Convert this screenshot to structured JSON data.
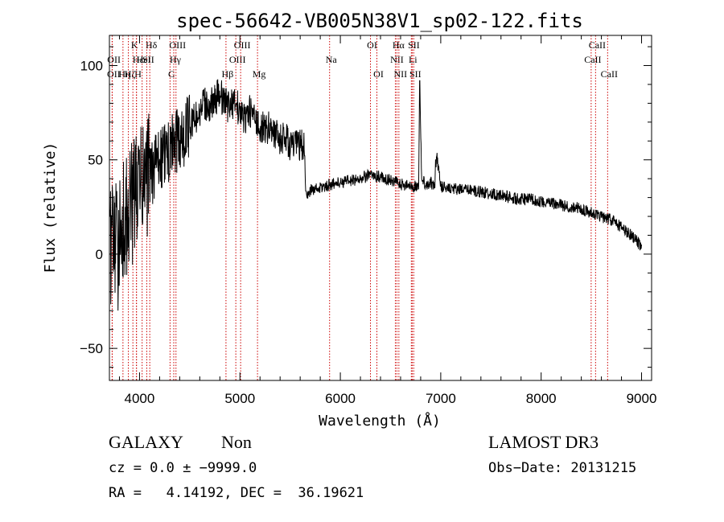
{
  "chart_data": {
    "type": "line",
    "title": "spec-56642-VB005N38V1_sp02-122.fits",
    "xlabel": "Wavelength (Å)",
    "ylabel": "Flux (relative)",
    "xlim": [
      3700,
      9100
    ],
    "ylim": [
      -67,
      116
    ],
    "xticks": [
      4000,
      5000,
      6000,
      7000,
      8000,
      9000
    ],
    "yticks": [
      -50,
      0,
      50,
      100
    ],
    "tick_labels_x": [
      "4000",
      "5000",
      "6000",
      "7000",
      "8000",
      "9000"
    ],
    "tick_labels_y": [
      "−50",
      "0",
      "50",
      "100"
    ],
    "grid": false,
    "line_color": "#000000",
    "marker_color": "#cc0000",
    "series": [
      {
        "values_x": [
          3700,
          3740,
          3780,
          3820,
          3860,
          3900,
          3950,
          4000,
          4050,
          4100,
          4150,
          4200,
          4250,
          4300,
          4350,
          4400,
          4450,
          4500,
          4550,
          4600,
          4650,
          4700,
          4750,
          4800,
          4850,
          4900,
          4950,
          5000,
          5050,
          5100,
          5150,
          5200,
          5250,
          5300,
          5350,
          5400,
          5450,
          5500,
          5550,
          5600,
          5640,
          5660,
          5700,
          5800,
          5900,
          6000,
          6100,
          6200,
          6300,
          6400,
          6500,
          6562,
          6600,
          6700,
          6750,
          6780,
          6790,
          6810,
          6850,
          6900,
          6940,
          6960,
          7000,
          7100,
          7200,
          7300,
          7400,
          7500,
          7600,
          7700,
          7800,
          7900,
          8000,
          8100,
          8200,
          8300,
          8400,
          8500,
          8600,
          8700,
          8750,
          8800,
          8850,
          8900,
          8950,
          9000
        ],
        "values_y": [
          5,
          10,
          0,
          20,
          15,
          25,
          30,
          35,
          40,
          42,
          45,
          50,
          52,
          55,
          58,
          60,
          65,
          68,
          72,
          75,
          80,
          78,
          82,
          85,
          80,
          78,
          82,
          75,
          72,
          76,
          70,
          68,
          66,
          68,
          64,
          60,
          62,
          58,
          57,
          58,
          56,
          30,
          34,
          35,
          37,
          38,
          39,
          40,
          42,
          41,
          39,
          38,
          37,
          36,
          36,
          37,
          92,
          40,
          37,
          38,
          36,
          52,
          36,
          35,
          34,
          34,
          33,
          32,
          31,
          30,
          29,
          29,
          28,
          27,
          26,
          25,
          24,
          22,
          20,
          18,
          16,
          14,
          12,
          10,
          8,
          2
        ]
      }
    ],
    "line_markers": [
      {
        "x": 3727,
        "label": "OII",
        "row": 2
      },
      {
        "x": 3729,
        "label": "OII",
        "row": 1
      },
      {
        "x": 3835,
        "label": "Hη",
        "row": 2
      },
      {
        "x": 3889,
        "label": "Hζ",
        "row": 2
      },
      {
        "x": 3934,
        "label": "K",
        "row": 0
      },
      {
        "x": 3969,
        "label": "H",
        "row": 2
      },
      {
        "x": 3970,
        "label": "Hε",
        "row": 1
      },
      {
        "x": 4026,
        "label": "HeI",
        "row": 1
      },
      {
        "x": 4102,
        "label": "Hδ",
        "row": 0
      },
      {
        "x": 4072,
        "label": "SII",
        "row": 1
      },
      {
        "x": 4304,
        "label": "G",
        "row": 2
      },
      {
        "x": 4341,
        "label": "Hγ",
        "row": 1
      },
      {
        "x": 4363,
        "label": "OIII",
        "row": 0
      },
      {
        "x": 4861,
        "label": "Hβ",
        "row": 2
      },
      {
        "x": 4959,
        "label": "OIII",
        "row": 1
      },
      {
        "x": 5007,
        "label": "OIII",
        "row": 0
      },
      {
        "x": 5175,
        "label": "Mg",
        "row": 2
      },
      {
        "x": 5893,
        "label": "Na",
        "row": 1
      },
      {
        "x": 6300,
        "label": "OI",
        "row": 0
      },
      {
        "x": 6364,
        "label": "OI",
        "row": 2
      },
      {
        "x": 6548,
        "label": "NII",
        "row": 1
      },
      {
        "x": 6563,
        "label": "Hα",
        "row": 0
      },
      {
        "x": 6583,
        "label": "NII",
        "row": 2
      },
      {
        "x": 6707,
        "label": "Li",
        "row": 1
      },
      {
        "x": 6716,
        "label": "SII",
        "row": 0
      },
      {
        "x": 6731,
        "label": "SII",
        "row": 2
      },
      {
        "x": 8498,
        "label": "CaII",
        "row": 1
      },
      {
        "x": 8542,
        "label": "CaII",
        "row": 0
      },
      {
        "x": 8662,
        "label": "CaII",
        "row": 2
      }
    ]
  },
  "info": {
    "class_label": "GALAXY",
    "subclass_label": "Non",
    "survey": "LAMOST DR3",
    "cz_line": "cz = 0.0 ± −9999.0",
    "obs_date_line": "Obs−Date: 20131215",
    "radec_line": "RA =   4.14192, DEC =  36.19621"
  }
}
